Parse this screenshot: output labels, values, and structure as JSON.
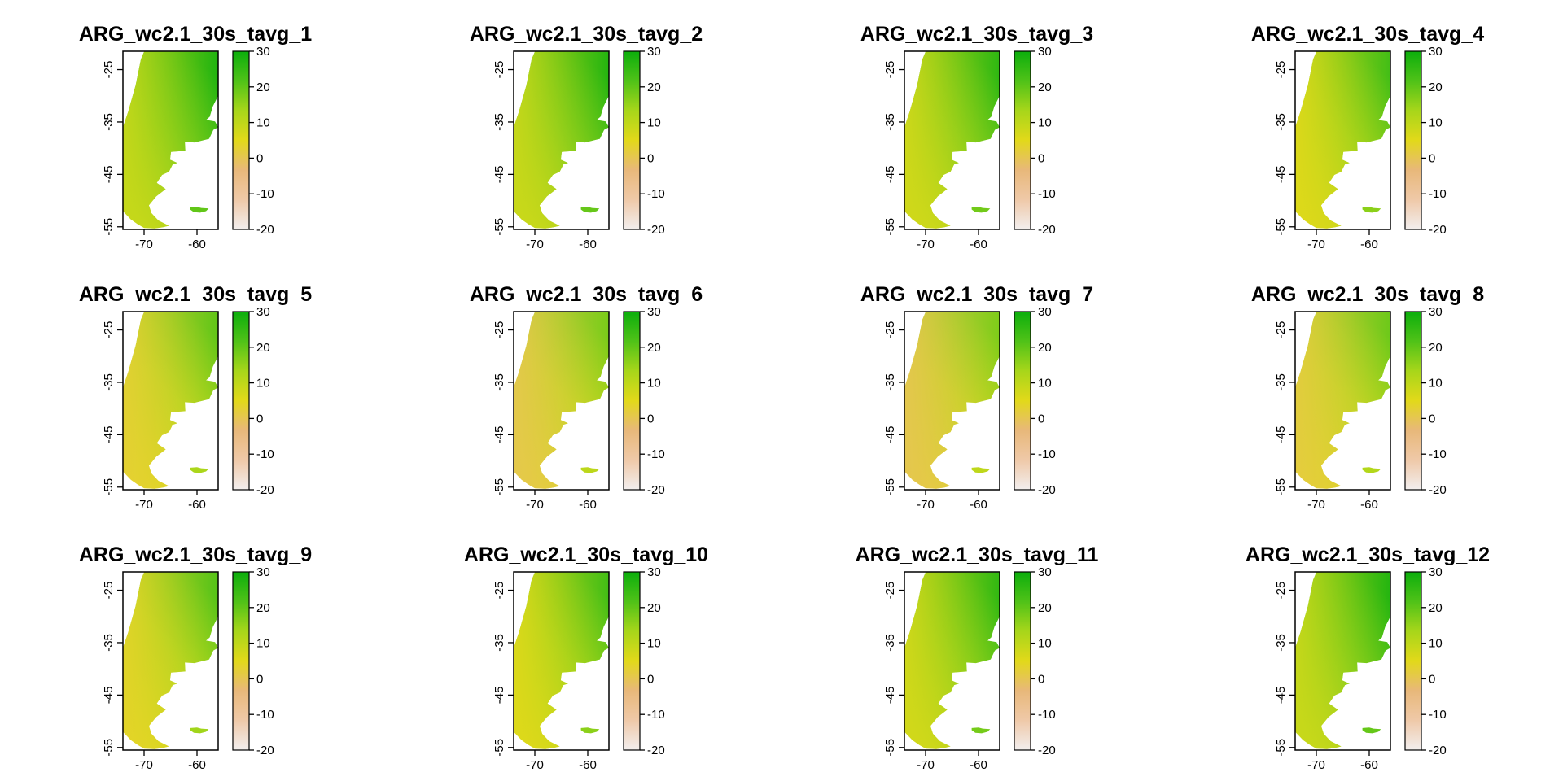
{
  "chart_data": {
    "type": "heatmap",
    "x_ticks": [
      "-70",
      "-60"
    ],
    "y_ticks": [
      "-25",
      "-35",
      "-45",
      "-55"
    ],
    "legend_ticks": [
      "30",
      "20",
      "10",
      "0",
      "-10",
      "-20"
    ],
    "legend_range": [
      -20,
      30
    ],
    "colors": {
      "legend_stops": [
        "#f2eeee",
        "#efc9a8",
        "#e8b87a",
        "#e2d91a",
        "#a7d61a",
        "#50c218",
        "#0cae0c"
      ],
      "ocean": "#ffffff",
      "frame": "#000000"
    },
    "panels": [
      {
        "title": "ARG_wc2.1_30s_tavg_1",
        "month": 1,
        "warmth": 1.0
      },
      {
        "title": "ARG_wc2.1_30s_tavg_2",
        "month": 2,
        "warmth": 0.97
      },
      {
        "title": "ARG_wc2.1_30s_tavg_3",
        "month": 3,
        "warmth": 0.9
      },
      {
        "title": "ARG_wc2.1_30s_tavg_4",
        "month": 4,
        "warmth": 0.75
      },
      {
        "title": "ARG_wc2.1_30s_tavg_5",
        "month": 5,
        "warmth": 0.55
      },
      {
        "title": "ARG_wc2.1_30s_tavg_6",
        "month": 6,
        "warmth": 0.4
      },
      {
        "title": "ARG_wc2.1_30s_tavg_7",
        "month": 7,
        "warmth": 0.38
      },
      {
        "title": "ARG_wc2.1_30s_tavg_8",
        "month": 8,
        "warmth": 0.48
      },
      {
        "title": "ARG_wc2.1_30s_tavg_9",
        "month": 9,
        "warmth": 0.62
      },
      {
        "title": "ARG_wc2.1_30s_tavg_10",
        "month": 10,
        "warmth": 0.75
      },
      {
        "title": "ARG_wc2.1_30s_tavg_11",
        "month": 11,
        "warmth": 0.88
      },
      {
        "title": "ARG_wc2.1_30s_tavg_12",
        "month": 12,
        "warmth": 0.98
      }
    ]
  }
}
